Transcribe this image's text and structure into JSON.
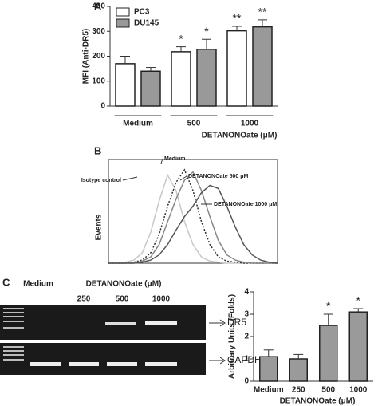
{
  "panels": {
    "a": "A",
    "b": "B",
    "c": "C"
  },
  "gel": {
    "medium": "Medium",
    "treatment": "DETANONOate (μM)",
    "lanes": [
      "250",
      "500",
      "1000"
    ],
    "bands": [
      "DR5",
      "GAPDH"
    ]
  },
  "chart_data": [
    {
      "type": "bar",
      "ylabel": "MFI (Anti-DR5)",
      "xlabel": "DETANONOate (μM)",
      "categories": [
        "Medium",
        "500",
        "1000"
      ],
      "series": [
        {
          "name": "PC3",
          "color": "#ffffff",
          "values": [
            170,
            218,
            302
          ],
          "errors": [
            30,
            20,
            18
          ],
          "markers": [
            null,
            "*",
            "**"
          ]
        },
        {
          "name": "DU145",
          "color": "#999999",
          "values": [
            140,
            228,
            318
          ],
          "errors": [
            15,
            40,
            28
          ],
          "markers": [
            null,
            "*",
            "**"
          ]
        }
      ],
      "ylim": [
        0,
        400
      ],
      "yticks": [
        0,
        100,
        200,
        300,
        400
      ]
    },
    {
      "type": "line",
      "ylabel": "Events",
      "x": [
        0,
        5,
        10,
        15,
        20,
        25,
        30,
        35,
        40,
        45,
        50,
        55,
        60,
        65,
        70,
        75,
        80,
        85,
        90,
        95,
        100
      ],
      "xlim": [
        0,
        100
      ],
      "ylim": [
        0,
        100
      ],
      "series": [
        {
          "name": "Isotype control",
          "color": "#c8c8c8",
          "values": [
            0,
            0,
            1,
            3,
            10,
            30,
            60,
            85,
            70,
            40,
            18,
            6,
            2,
            1,
            0,
            0,
            0,
            0,
            0,
            0,
            0
          ]
        },
        {
          "name": "Medium",
          "color": "#333333",
          "dashed": true,
          "values": [
            0,
            0,
            0,
            1,
            3,
            10,
            28,
            55,
            78,
            90,
            70,
            40,
            18,
            6,
            2,
            1,
            0,
            0,
            0,
            0,
            0
          ]
        },
        {
          "name": "DETANONOate 500 μM",
          "color": "#888888",
          "values": [
            0,
            0,
            0,
            0,
            2,
            6,
            18,
            40,
            62,
            80,
            88,
            70,
            45,
            22,
            8,
            3,
            1,
            0,
            0,
            0,
            0
          ]
        },
        {
          "name": "DETANONOate 1000 μM",
          "color": "#555555",
          "values": [
            0,
            0,
            0,
            0,
            1,
            3,
            8,
            18,
            32,
            45,
            55,
            68,
            75,
            72,
            55,
            35,
            18,
            8,
            3,
            1,
            0
          ]
        }
      ]
    },
    {
      "type": "bar",
      "ylabel": "Arbitrary Units (Folds)",
      "xlabel": "DETANONOate (μM)",
      "categories": [
        "Medium",
        "250",
        "500",
        "1000"
      ],
      "series": [
        {
          "color": "#9a9a9a",
          "values": [
            1.1,
            1.0,
            2.5,
            3.1
          ],
          "errors": [
            0.3,
            0.2,
            0.5,
            0.15
          ],
          "markers": [
            null,
            null,
            "*",
            "*"
          ]
        }
      ],
      "ylim": [
        0,
        4
      ],
      "yticks": [
        0,
        1,
        2,
        3,
        4
      ]
    }
  ]
}
